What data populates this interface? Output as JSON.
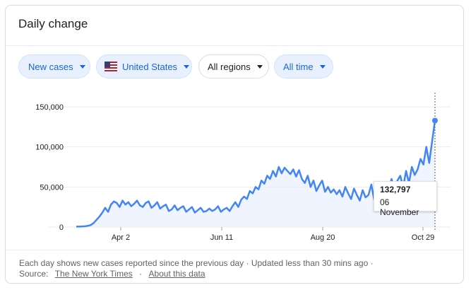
{
  "card": {
    "title": "Daily change"
  },
  "filters": {
    "metric": "New cases",
    "country": "United States",
    "region": "All regions",
    "period": "All time"
  },
  "chart_data": {
    "type": "line",
    "yticks": [
      "150,000",
      "100,000",
      "50,000",
      "0"
    ],
    "ytick_values": [
      150000,
      100000,
      50000,
      0
    ],
    "xticks": [
      "Apr 2",
      "Jun 11",
      "Aug 20",
      "Oct 29"
    ],
    "ylim": [
      0,
      150000
    ],
    "color": "#4285f4",
    "fill_color": "#e8f0fe",
    "series": [
      {
        "values": [
          500,
          600,
          800,
          1000,
          1500,
          2500,
          5000,
          9000,
          13000,
          18000,
          24000,
          19000,
          28000,
          32000,
          30000,
          25000,
          33000,
          28000,
          31000,
          26000,
          29000,
          33000,
          27000,
          25000,
          30000,
          32000,
          24000,
          27000,
          31000,
          23000,
          26000,
          28000,
          20000,
          22000,
          27000,
          21000,
          24000,
          26000,
          19000,
          22000,
          25000,
          18000,
          21000,
          24000,
          19000,
          20000,
          23000,
          20000,
          22000,
          26000,
          19000,
          22000,
          24000,
          20000,
          26000,
          31000,
          25000,
          34000,
          38000,
          35000,
          45000,
          42000,
          50000,
          47000,
          58000,
          54000,
          64000,
          60000,
          70000,
          63000,
          75000,
          67000,
          74000,
          70000,
          66000,
          72000,
          63000,
          71000,
          60000,
          55000,
          64000,
          50000,
          58000,
          45000,
          52000,
          58000,
          44000,
          50000,
          43000,
          47000,
          41000,
          46000,
          38000,
          50000,
          42000,
          35000,
          48000,
          40000,
          33000,
          46000,
          37000,
          40000,
          53000,
          34000,
          39000,
          47000,
          56000,
          40000,
          48000,
          60000,
          45000,
          58000,
          64000,
          50000,
          70000,
          55000,
          75000,
          65000,
          72000,
          85000,
          78000,
          100000,
          80000,
          107000,
          132797
        ]
      }
    ],
    "tooltip": {
      "value": "132,797",
      "date": "06 November"
    }
  },
  "footer": {
    "note": "Each day shows new cases reported since the previous day · Updated less than 30 mins ago ·",
    "source_label": "Source:",
    "source_link": "The New York Times",
    "separator": "·",
    "about_link": "About this data"
  }
}
